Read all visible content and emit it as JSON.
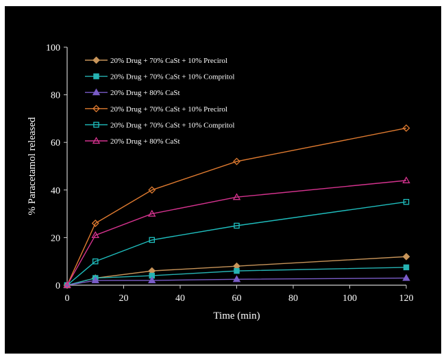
{
  "chart_data": {
    "type": "line",
    "xlabel": "Time (min)",
    "ylabel": "% Paracetamol released",
    "xlim": [
      0,
      120
    ],
    "ylim": [
      0,
      100
    ],
    "xticks": [
      0,
      20,
      40,
      60,
      80,
      100,
      120
    ],
    "yticks": [
      0,
      20,
      40,
      60,
      80,
      100
    ],
    "grid": false,
    "legend_position": "top-left",
    "x": [
      0,
      10,
      30,
      60,
      120
    ],
    "series": [
      {
        "name": "20% Drug + 70% CaSt + 10% Precirol",
        "marker": "diamond",
        "filled": true,
        "color": "#c8955a",
        "values": [
          0,
          3,
          6,
          8,
          12
        ]
      },
      {
        "name": "20% Drug + 70% CaSt + 10% Compritol",
        "marker": "square",
        "filled": true,
        "color": "#26b3b3",
        "values": [
          0,
          3,
          4,
          6,
          7.5
        ]
      },
      {
        "name": "20% Drug + 80% CaSt",
        "marker": "triangle",
        "filled": true,
        "color": "#7a5cc8",
        "values": [
          0,
          2,
          2,
          2.5,
          3
        ]
      },
      {
        "name": "20% Drug + 70% CaSt + 10% Precirol",
        "marker": "diamond",
        "filled": false,
        "color": "#e07b30",
        "values": [
          0,
          26,
          40,
          52,
          66
        ]
      },
      {
        "name": "20% Drug + 70% CaSt + 10% Compritol",
        "marker": "square",
        "filled": false,
        "color": "#1fbfbf",
        "values": [
          0,
          10,
          19,
          25,
          35
        ]
      },
      {
        "name": "20% Drug + 80% CaSt",
        "marker": "triangle",
        "filled": false,
        "color": "#d6338f",
        "values": [
          0,
          21,
          30,
          37,
          44
        ]
      }
    ]
  }
}
